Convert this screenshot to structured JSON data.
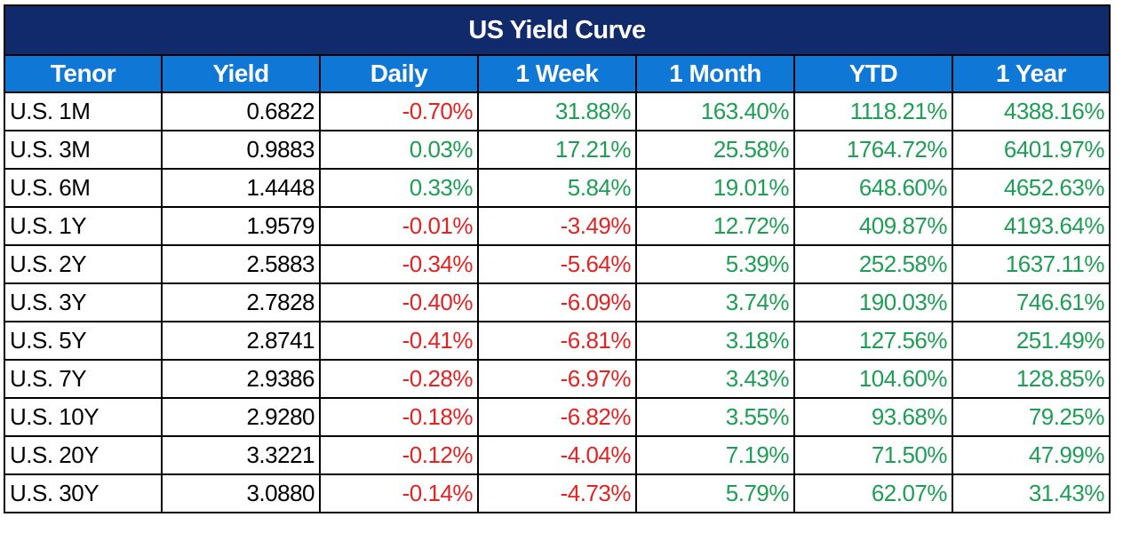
{
  "title": "US Yield Curve",
  "colors": {
    "title_bg": "#102a6b",
    "header_bg": "#0f78d6",
    "positive": "#1e9e54",
    "negative": "#e02424",
    "text": "#000000"
  },
  "columns": [
    "Tenor",
    "Yield",
    "Daily",
    "1 Week",
    "1 Month",
    "YTD",
    "1 Year"
  ],
  "rows": [
    [
      "U.S. 1M",
      "0.6822",
      "-0.70%",
      "31.88%",
      "163.40%",
      "1118.21%",
      "4388.16%"
    ],
    [
      "U.S. 3M",
      "0.9883",
      "0.03%",
      "17.21%",
      "25.58%",
      "1764.72%",
      "6401.97%"
    ],
    [
      "U.S. 6M",
      "1.4448",
      "0.33%",
      "5.84%",
      "19.01%",
      "648.60%",
      "4652.63%"
    ],
    [
      "U.S. 1Y",
      "1.9579",
      "-0.01%",
      "-3.49%",
      "12.72%",
      "409.87%",
      "4193.64%"
    ],
    [
      "U.S. 2Y",
      "2.5883",
      "-0.34%",
      "-5.64%",
      "5.39%",
      "252.58%",
      "1637.11%"
    ],
    [
      "U.S. 3Y",
      "2.7828",
      "-0.40%",
      "-6.09%",
      "3.74%",
      "190.03%",
      "746.61%"
    ],
    [
      "U.S. 5Y",
      "2.8741",
      "-0.41%",
      "-6.81%",
      "3.18%",
      "127.56%",
      "251.49%"
    ],
    [
      "U.S. 7Y",
      "2.9386",
      "-0.28%",
      "-6.97%",
      "3.43%",
      "104.60%",
      "128.85%"
    ],
    [
      "U.S. 10Y",
      "2.9280",
      "-0.18%",
      "-6.82%",
      "3.55%",
      "93.68%",
      "79.25%"
    ],
    [
      "U.S. 20Y",
      "3.3221",
      "-0.12%",
      "-4.04%",
      "7.19%",
      "71.50%",
      "47.99%"
    ],
    [
      "U.S. 30Y",
      "3.0880",
      "-0.14%",
      "-4.73%",
      "5.79%",
      "62.07%",
      "31.43%"
    ]
  ],
  "chart_data": {
    "type": "table",
    "title": "US Yield Curve",
    "columns": [
      "Tenor",
      "Yield",
      "Daily",
      "1 Week",
      "1 Month",
      "YTD",
      "1 Year"
    ],
    "rows": [
      [
        "U.S. 1M",
        0.6822,
        -0.7,
        31.88,
        163.4,
        1118.21,
        4388.16
      ],
      [
        "U.S. 3M",
        0.9883,
        0.03,
        17.21,
        25.58,
        1764.72,
        6401.97
      ],
      [
        "U.S. 6M",
        1.4448,
        0.33,
        5.84,
        19.01,
        648.6,
        4652.63
      ],
      [
        "U.S. 1Y",
        1.9579,
        -0.01,
        -3.49,
        12.72,
        409.87,
        4193.64
      ],
      [
        "U.S. 2Y",
        2.5883,
        -0.34,
        -5.64,
        5.39,
        252.58,
        1637.11
      ],
      [
        "U.S. 3Y",
        2.7828,
        -0.4,
        -6.09,
        3.74,
        190.03,
        746.61
      ],
      [
        "U.S. 5Y",
        2.8741,
        -0.41,
        -6.81,
        3.18,
        127.56,
        251.49
      ],
      [
        "U.S. 7Y",
        2.9386,
        -0.28,
        -6.97,
        3.43,
        104.6,
        128.85
      ],
      [
        "U.S. 10Y",
        2.928,
        -0.18,
        -6.82,
        3.55,
        93.68,
        79.25
      ],
      [
        "U.S. 20Y",
        3.3221,
        -0.12,
        -4.04,
        7.19,
        71.5,
        47.99
      ],
      [
        "U.S. 30Y",
        3.088,
        -0.14,
        -4.73,
        5.79,
        62.07,
        31.43
      ]
    ]
  }
}
